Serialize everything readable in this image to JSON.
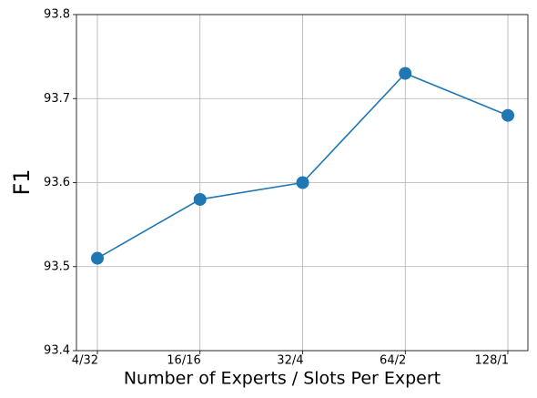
{
  "chart_data": {
    "type": "line",
    "x_label": "Number of Experts / Slots Per Expert",
    "y_label": "F1",
    "categories": [
      "4/32",
      "16/16",
      "32/4",
      "64/2",
      "128/1"
    ],
    "series": [
      {
        "name": "F1",
        "color": "#1f77b4",
        "values": [
          93.51,
          93.58,
          93.6,
          93.73,
          93.68
        ]
      }
    ],
    "ylim": [
      93.4,
      93.8
    ],
    "yticks": [
      93.4,
      93.5,
      93.6,
      93.7,
      93.8
    ],
    "grid": true
  }
}
